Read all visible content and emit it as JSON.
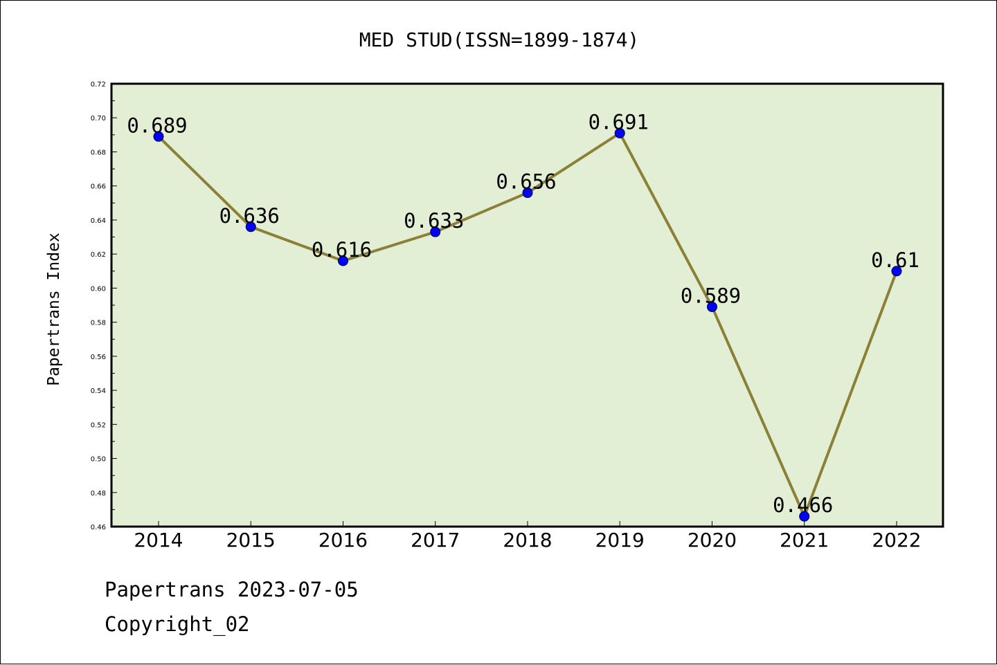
{
  "chart_data": {
    "type": "line",
    "title": "MED STUD(ISSN=1899-1874)",
    "ylabel": "Papertrans Index",
    "xlabel": "",
    "categories": [
      "2014",
      "2015",
      "2016",
      "2017",
      "2018",
      "2019",
      "2020",
      "2021",
      "2022"
    ],
    "values": [
      0.689,
      0.636,
      0.616,
      0.633,
      0.656,
      0.691,
      0.589,
      0.466,
      0.61
    ],
    "data_labels": [
      "0.689",
      "0.636",
      "0.616",
      "0.633",
      "0.656",
      "0.691",
      "0.589",
      "0.466",
      "0.61"
    ],
    "ylim": [
      0.46,
      0.72
    ],
    "yticks": [
      "0.46",
      "0.48",
      "0.50",
      "0.52",
      "0.54",
      "0.56",
      "0.58",
      "0.60",
      "0.62",
      "0.64",
      "0.66",
      "0.68",
      "0.70",
      "0.72"
    ],
    "grid": false,
    "legend": "none",
    "colors": {
      "plot_background": "#e2efd5",
      "line": "#8b8036",
      "marker": "#0000ff"
    }
  },
  "footer": {
    "line1": "Papertrans 2023-07-05",
    "line2": "Copyright_02"
  }
}
